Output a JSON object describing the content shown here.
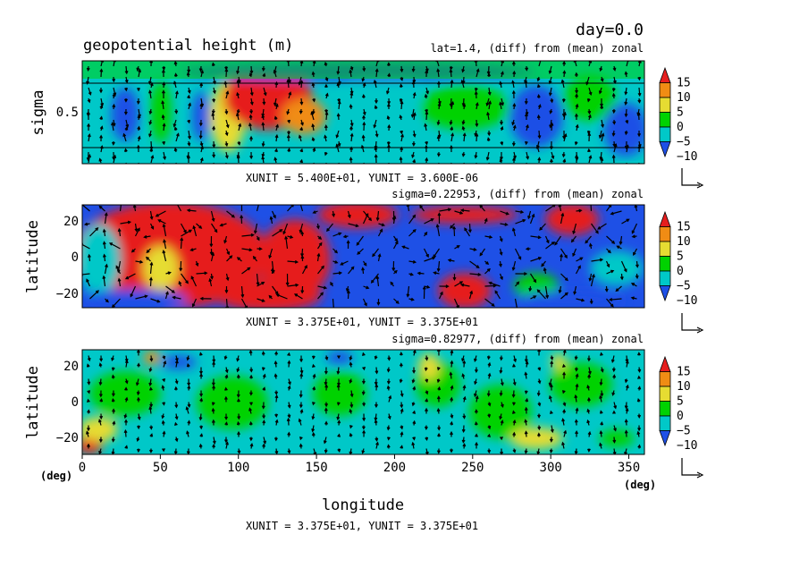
{
  "header": {
    "day": "day=0.0",
    "title": "geopotential height (m)"
  },
  "colorbar": {
    "labels": [
      "15",
      "10",
      "5",
      "0",
      "−5",
      "−10"
    ],
    "colors": [
      "#1e50e6",
      "#00c8c8",
      "#00d200",
      "#e6dc32",
      "#f08c14",
      "#e61e1e"
    ]
  },
  "chart_data": [
    {
      "type": "heatmap",
      "panel": "top",
      "subtitle": "lat=1.4, (diff) from (mean) zonal",
      "ylabel": "sigma",
      "yticks": [
        "0.5"
      ],
      "unit_text": "XUNIT = 5.400E+01, YUNIT = 3.600E-06",
      "xlim": [
        0,
        360
      ],
      "ylim": [
        0,
        1
      ],
      "contour_levels": [
        -10,
        -5,
        0,
        5,
        10,
        15
      ]
    },
    {
      "type": "heatmap",
      "panel": "middle",
      "subtitle": "sigma=0.22953, (diff) from (mean) zonal",
      "ylabel": "latitude",
      "yticks": [
        "20",
        "0",
        "−20"
      ],
      "unit_text": "XUNIT = 3.375E+01, YUNIT = 3.375E+01",
      "xlim": [
        0,
        360
      ],
      "ylim": [
        -30,
        30
      ],
      "contour_levels": [
        -10,
        -5,
        0,
        5,
        10,
        15
      ]
    },
    {
      "type": "heatmap",
      "panel": "bottom",
      "subtitle": "sigma=0.82977, (diff) from (mean) zonal",
      "ylabel": "latitude",
      "yticks": [
        "20",
        "0",
        "−20"
      ],
      "xticks": [
        "0",
        "50",
        "100",
        "150",
        "200",
        "250",
        "300",
        "350"
      ],
      "xlabel": "longitude",
      "xunit_left": "(deg)",
      "xunit_right": "(deg)",
      "unit_text": "XUNIT = 3.375E+01, YUNIT = 3.375E+01",
      "xlim": [
        0,
        360
      ],
      "ylim": [
        -30,
        30
      ],
      "contour_levels": [
        -10,
        -5,
        0,
        5,
        10,
        15
      ]
    }
  ]
}
